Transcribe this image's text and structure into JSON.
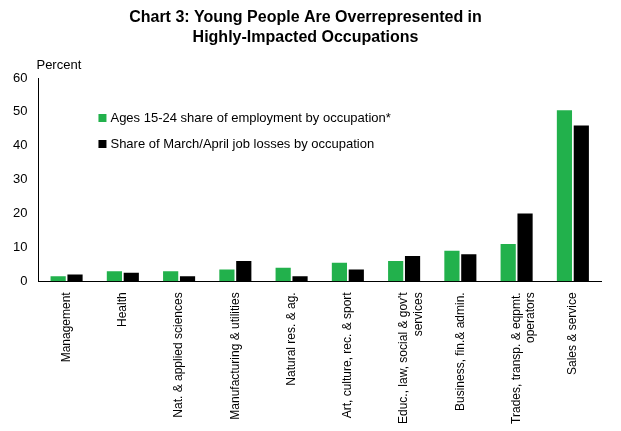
{
  "chart_data": {
    "type": "bar",
    "title": [
      "Chart 3: Young People Are Overrepresented in",
      "Highly-Impacted Occupations"
    ],
    "ylabel": "Percent",
    "categories": [
      "Management",
      "Health",
      "Nat. & applied sciences",
      "Manufacturing & utilities",
      "Natural res. & ag.",
      "Art, culture, rec. & sport",
      [
        "Educ., law, social & gov't",
        "services"
      ],
      "Business, fin.& admin.",
      [
        "Trades, transp. & eqpmt.",
        "operators"
      ],
      "Sales & service"
    ],
    "series": [
      {
        "name": "Ages 15-24 share of employment by occupation*",
        "color": "#22b14c",
        "values": [
          1.5,
          3,
          3,
          3.5,
          4,
          5.5,
          6,
          9,
          11,
          50.5
        ]
      },
      {
        "name": "Share of March/April job losses by occupation",
        "color": "#000000",
        "values": [
          2,
          2.5,
          1.5,
          6,
          1.5,
          3.5,
          7.5,
          8,
          20,
          46
        ]
      }
    ],
    "ylim": [
      0,
      60
    ],
    "yticks": [
      0,
      10,
      20,
      30,
      40,
      50,
      60
    ],
    "grid": false,
    "legend": "upper left"
  }
}
